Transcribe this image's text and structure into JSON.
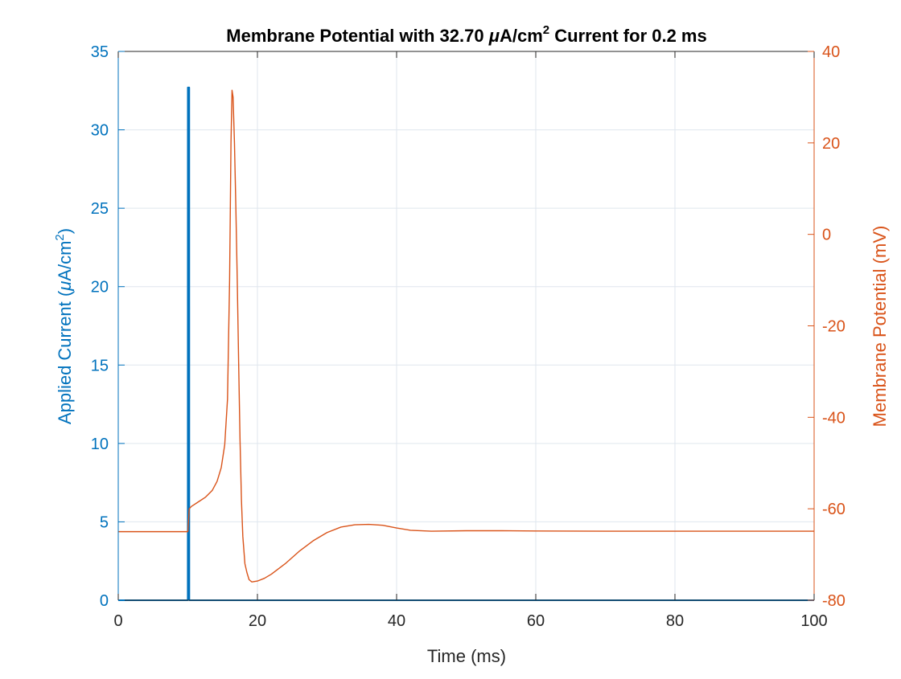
{
  "chart_data": {
    "type": "line",
    "title": "Membrane Potential with 32.70 μA/cm² Current for 0.2 ms",
    "title_parts": {
      "prefix": "Membrane Potential with 32.70 ",
      "mu": "μ",
      "unit": "A/cm",
      "sup": "2",
      "suffix": " Current for 0.2 ms"
    },
    "xlabel": "Time (ms)",
    "ylabel_left": "Applied Current (μA/cm²)",
    "ylabel_left_parts": {
      "prefix": "Applied Current (",
      "mu": "μ",
      "unit": "A/cm",
      "sup": "2",
      "suffix": ")"
    },
    "ylabel_right": "Membrane Potential (mV)",
    "xlim": [
      0,
      100
    ],
    "ylim_left": [
      0,
      35
    ],
    "ylim_right": [
      -80,
      40
    ],
    "xticks": [
      "0",
      "20",
      "40",
      "60",
      "80",
      "100"
    ],
    "yticks_left": [
      "0",
      "5",
      "10",
      "15",
      "20",
      "25",
      "30",
      "35"
    ],
    "yticks_right": [
      "-80",
      "-60",
      "-40",
      "-20",
      "0",
      "20",
      "40"
    ],
    "grid": true,
    "colors": {
      "current": "#0072BD",
      "potential": "#D95319",
      "grid": "#DFE6EE",
      "axis": "#262626"
    },
    "series": [
      {
        "axis": "left",
        "x": [
          0,
          9.99,
          10.0,
          10.2,
          10.21,
          100
        ],
        "y": [
          0,
          0,
          32.7,
          32.7,
          0,
          0
        ]
      },
      {
        "axis": "right",
        "x": [
          0,
          10.0,
          10.2,
          10.5,
          11.5,
          12.5,
          13.5,
          14.2,
          14.8,
          15.3,
          15.7,
          16.0,
          16.2,
          16.35,
          16.5,
          16.7,
          16.9,
          17.1,
          17.3,
          17.5,
          17.7,
          17.9,
          18.2,
          18.5,
          18.8,
          19.2,
          20,
          21,
          22,
          24,
          26,
          28,
          30,
          32,
          34,
          36,
          38,
          40,
          42,
          45,
          50,
          55,
          60,
          70,
          80,
          90,
          100
        ],
        "y": [
          -65,
          -65,
          -60,
          -59.5,
          -58.5,
          -57.5,
          -56,
          -54,
          -51,
          -46,
          -36,
          -10,
          20,
          31.5,
          30,
          20,
          6,
          -10,
          -28,
          -45,
          -58,
          -66,
          -72,
          -74,
          -75.5,
          -76,
          -75.8,
          -75.2,
          -74.3,
          -72,
          -69.3,
          -67,
          -65.2,
          -64,
          -63.5,
          -63.4,
          -63.6,
          -64.2,
          -64.7,
          -64.9,
          -64.8,
          -64.8,
          -64.85,
          -64.9,
          -64.9,
          -64.9,
          -64.9
        ]
      }
    ]
  }
}
